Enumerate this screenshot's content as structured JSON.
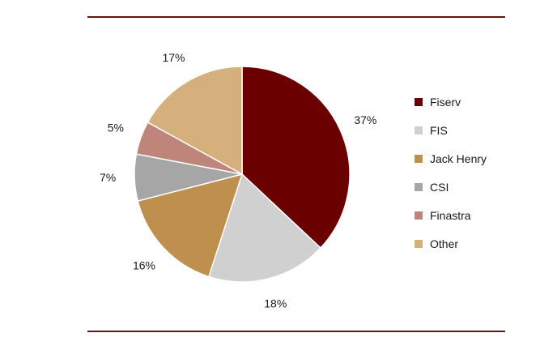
{
  "chart_data": {
    "type": "pie",
    "title": "",
    "start_angle_deg": 0,
    "direction": "clockwise",
    "legend_position": "right",
    "slices": [
      {
        "label": "Fiserv",
        "value": 37,
        "value_label": "37%",
        "color": "#6b0000"
      },
      {
        "label": "FIS",
        "value": 18,
        "value_label": "18%",
        "color": "#d0d0d0"
      },
      {
        "label": "Jack Henry",
        "value": 16,
        "value_label": "16%",
        "color": "#bf8f4e"
      },
      {
        "label": "CSI",
        "value": 7,
        "value_label": "7%",
        "color": "#a6a6a6"
      },
      {
        "label": "Finastra",
        "value": 5,
        "value_label": "5%",
        "color": "#c0857a"
      },
      {
        "label": "Other",
        "value": 17,
        "value_label": "17%",
        "color": "#d6b07c"
      }
    ]
  },
  "colors": {
    "rule": "#6b0f10",
    "slice_border": "#ffffff"
  }
}
